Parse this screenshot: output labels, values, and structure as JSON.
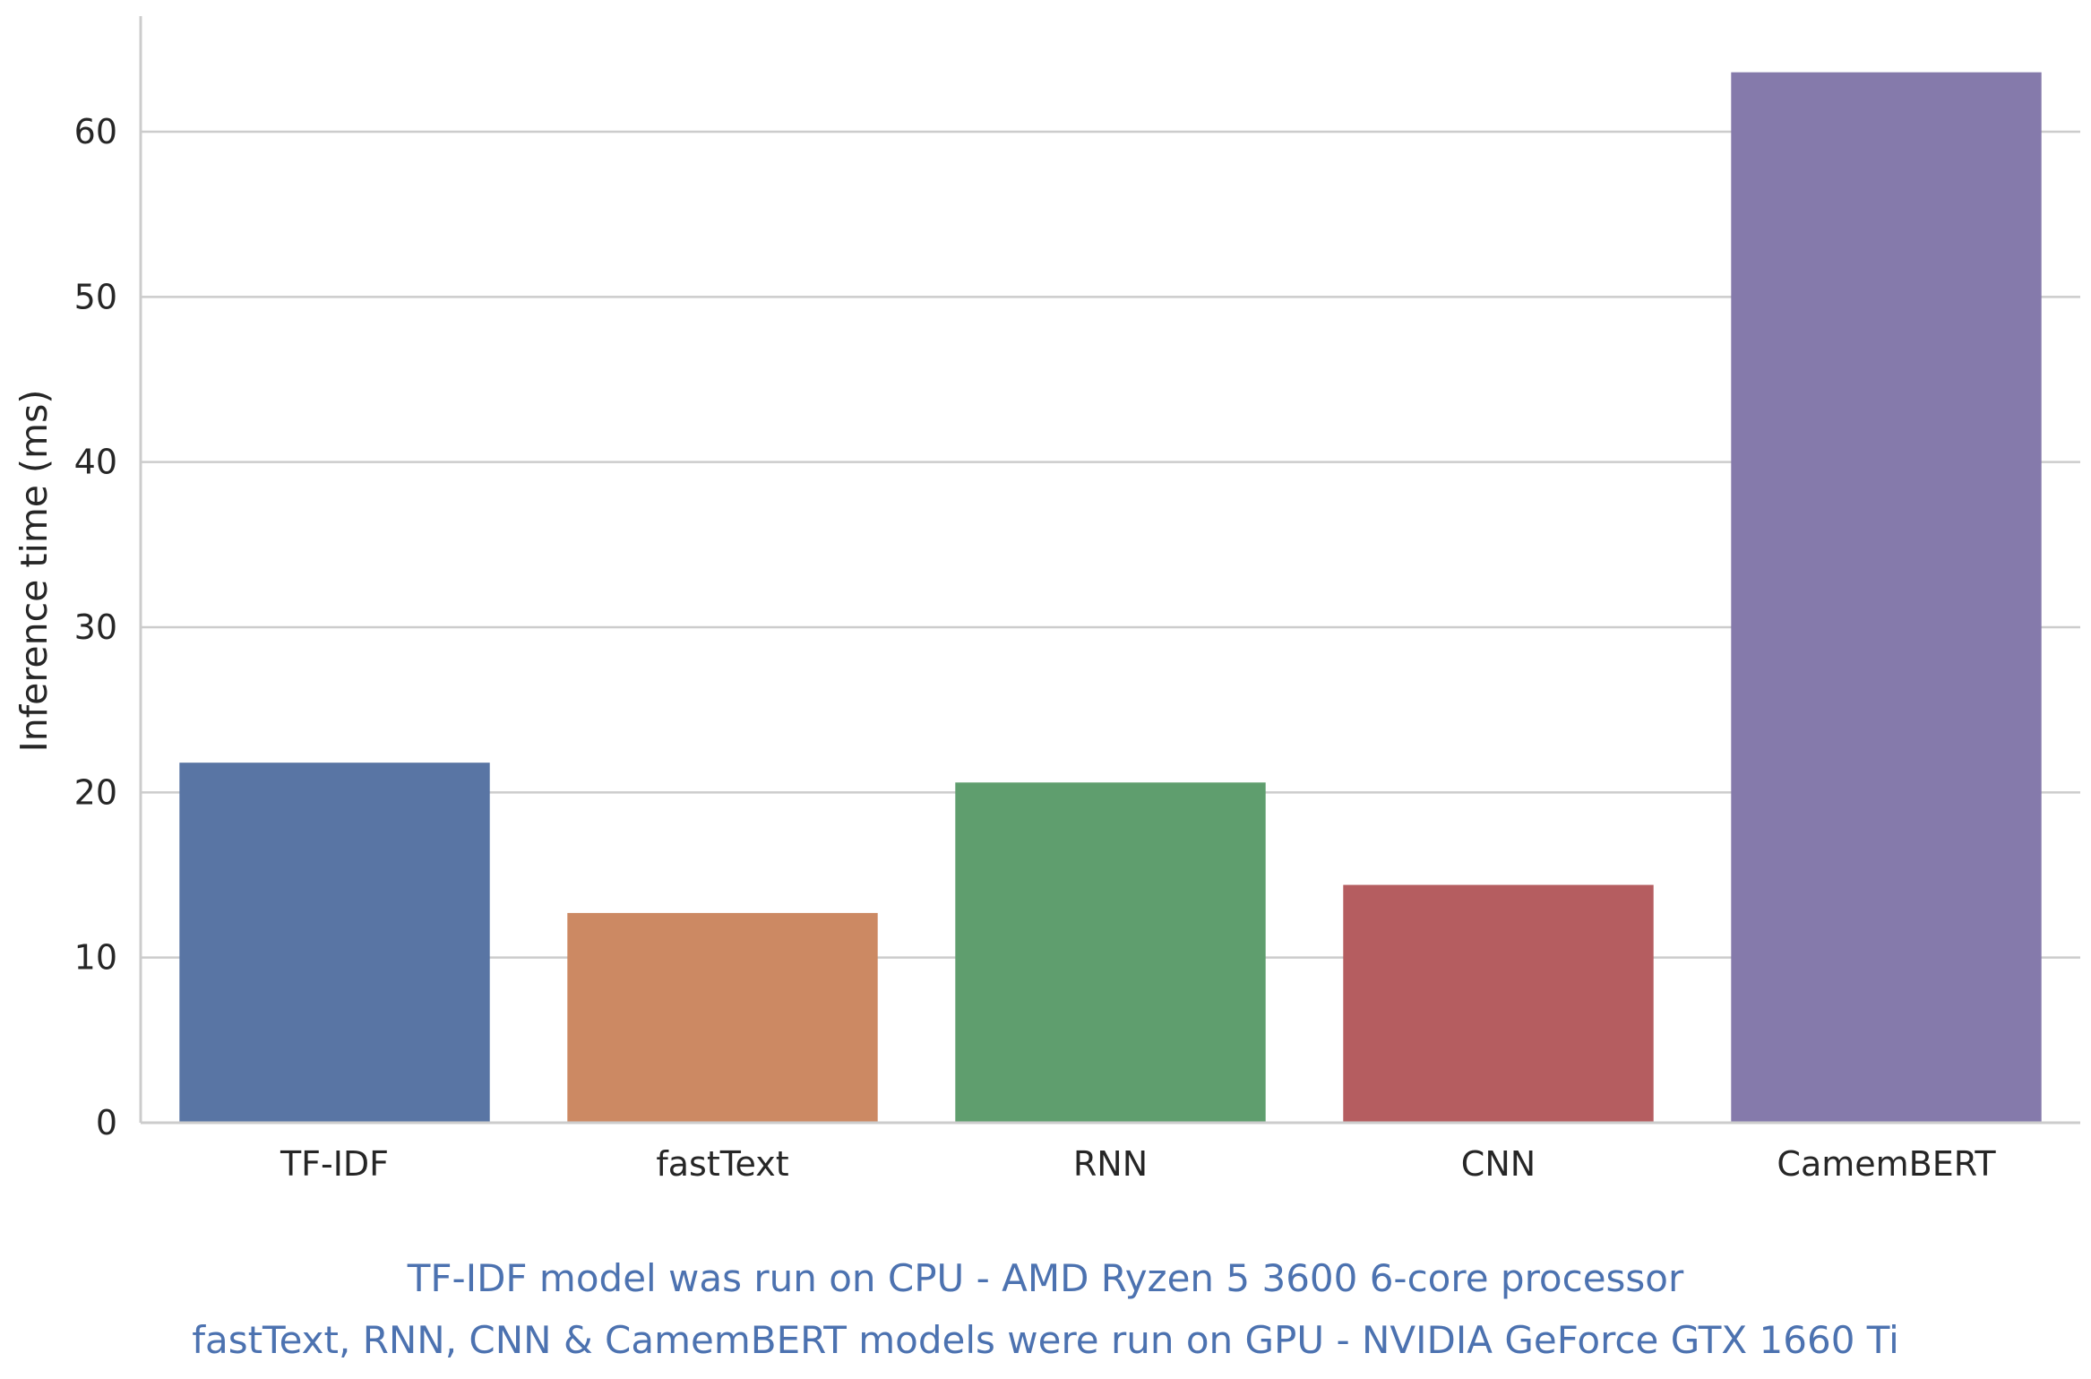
{
  "chart_data": {
    "type": "bar",
    "title": "",
    "xlabel": "",
    "ylabel": "Inference time (ms)",
    "categories": [
      "TF-IDF",
      "fastText",
      "RNN",
      "CNN",
      "CamemBERT"
    ],
    "values": [
      21.8,
      12.7,
      20.6,
      14.4,
      63.6
    ],
    "colors": [
      "#5975a4",
      "#cc8963",
      "#5f9e6e",
      "#b55d60",
      "#857aab"
    ],
    "ylim": [
      0,
      67
    ],
    "yticks": [
      0,
      10,
      20,
      30,
      40,
      50,
      60
    ],
    "ytick_labels": [
      "0",
      "10",
      "20",
      "30",
      "40",
      "50",
      "60"
    ],
    "grid": "horizontal",
    "legend": "none"
  },
  "notes": [
    "TF-IDF model was run on CPU - AMD Ryzen 5 3600 6-core processor",
    "fastText, RNN, CNN & CamemBERT models were run on GPU - NVIDIA GeForce GTX 1660 Ti"
  ],
  "colors": {
    "grid": "#cccccc",
    "axis": "#cccccc",
    "text": "#262626",
    "note": "#4c72b0"
  }
}
